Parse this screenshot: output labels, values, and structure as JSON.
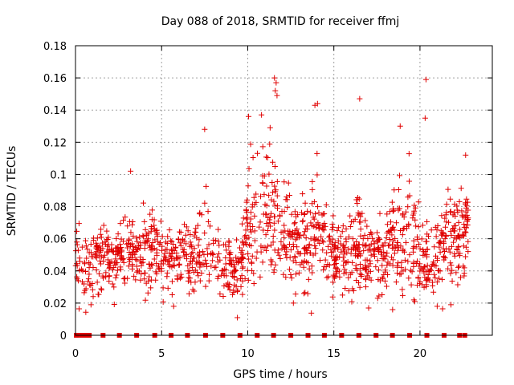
{
  "chart_data": {
    "type": "scatter",
    "title": "Day 088 of 2018, SRMTID for receiver ffmj",
    "xlabel": "GPS time / hours",
    "ylabel": "SRMTID / TECUs",
    "xlim": [
      0,
      24.2
    ],
    "ylim": [
      0,
      0.18
    ],
    "x_ticks": [
      0,
      5,
      10,
      15,
      20
    ],
    "x_tick_labels": [
      "0",
      "5",
      "10",
      "15",
      "20"
    ],
    "y_ticks": [
      0,
      0.02,
      0.04,
      0.06,
      0.08,
      0.1,
      0.12,
      0.14,
      0.16,
      0.18
    ],
    "y_tick_labels": [
      "0",
      "0.02",
      "0.04",
      "0.06",
      "0.08",
      "0.1",
      "0.12",
      "0.14",
      "0.16",
      "0.18"
    ],
    "grid": true,
    "marker_color": "#e00000",
    "zero_markers_x": [
      0.05,
      0.33,
      0.6,
      0.8,
      1.6,
      2.55,
      3.55,
      4.6,
      5.55,
      6.5,
      7.55,
      8.55,
      9.55,
      10.55,
      11.5,
      12.5,
      13.5,
      14.45,
      15.45,
      16.45,
      17.45,
      18.4,
      19.4,
      20.4,
      21.4,
      22.3,
      22.6
    ],
    "series": [
      {
        "name": "SRMTID",
        "marker": "+",
        "envelope": {
          "x": [
            0,
            0.5,
            1,
            1.5,
            2,
            2.5,
            3,
            3.5,
            4,
            4.5,
            5,
            5.5,
            6,
            6.5,
            7,
            7.5,
            8,
            8.5,
            9,
            9.5,
            10,
            10.5,
            11,
            11.5,
            12,
            12.5,
            13,
            13.5,
            14,
            14.5,
            15,
            15.5,
            16,
            16.5,
            17,
            17.5,
            18,
            18.5,
            19,
            19.5,
            20,
            20.5,
            21,
            21.5,
            22,
            22.5,
            22.8
          ],
          "mid": [
            0.045,
            0.045,
            0.048,
            0.048,
            0.046,
            0.048,
            0.052,
            0.05,
            0.052,
            0.055,
            0.05,
            0.046,
            0.048,
            0.05,
            0.05,
            0.058,
            0.05,
            0.042,
            0.04,
            0.042,
            0.065,
            0.072,
            0.078,
            0.075,
            0.065,
            0.058,
            0.055,
            0.06,
            0.065,
            0.058,
            0.05,
            0.045,
            0.05,
            0.055,
            0.052,
            0.048,
            0.05,
            0.058,
            0.068,
            0.065,
            0.05,
            0.045,
            0.05,
            0.058,
            0.06,
            0.065,
            0.068
          ],
          "spread": [
            0.018,
            0.02,
            0.018,
            0.02,
            0.016,
            0.018,
            0.022,
            0.018,
            0.02,
            0.022,
            0.02,
            0.018,
            0.018,
            0.02,
            0.018,
            0.028,
            0.024,
            0.02,
            0.018,
            0.018,
            0.032,
            0.04,
            0.04,
            0.04,
            0.03,
            0.026,
            0.024,
            0.03,
            0.032,
            0.024,
            0.02,
            0.018,
            0.022,
            0.026,
            0.022,
            0.02,
            0.022,
            0.028,
            0.034,
            0.032,
            0.024,
            0.02,
            0.022,
            0.026,
            0.026,
            0.026,
            0.02
          ],
          "count": 1400,
          "seed": 88
        },
        "highlights": [
          {
            "x": 3.2,
            "y": 0.102
          },
          {
            "x": 7.5,
            "y": 0.128
          },
          {
            "x": 10.05,
            "y": 0.136
          },
          {
            "x": 10.8,
            "y": 0.137
          },
          {
            "x": 11.3,
            "y": 0.129
          },
          {
            "x": 11.55,
            "y": 0.16
          },
          {
            "x": 11.65,
            "y": 0.157
          },
          {
            "x": 11.7,
            "y": 0.149
          },
          {
            "x": 11.6,
            "y": 0.152
          },
          {
            "x": 13.9,
            "y": 0.143
          },
          {
            "x": 14.05,
            "y": 0.144
          },
          {
            "x": 16.5,
            "y": 0.147
          },
          {
            "x": 18.85,
            "y": 0.13
          },
          {
            "x": 20.3,
            "y": 0.135
          },
          {
            "x": 20.35,
            "y": 0.159
          },
          {
            "x": 22.65,
            "y": 0.112
          },
          {
            "x": 9.4,
            "y": 0.011
          },
          {
            "x": 0.9,
            "y": 0.019
          },
          {
            "x": 5.7,
            "y": 0.018
          },
          {
            "x": 12.65,
            "y": 0.02
          },
          {
            "x": 19.7,
            "y": 0.021
          },
          {
            "x": 21.0,
            "y": 0.018
          },
          {
            "x": 21.8,
            "y": 0.019
          },
          {
            "x": 15.5,
            "y": 0.025
          }
        ]
      }
    ]
  }
}
